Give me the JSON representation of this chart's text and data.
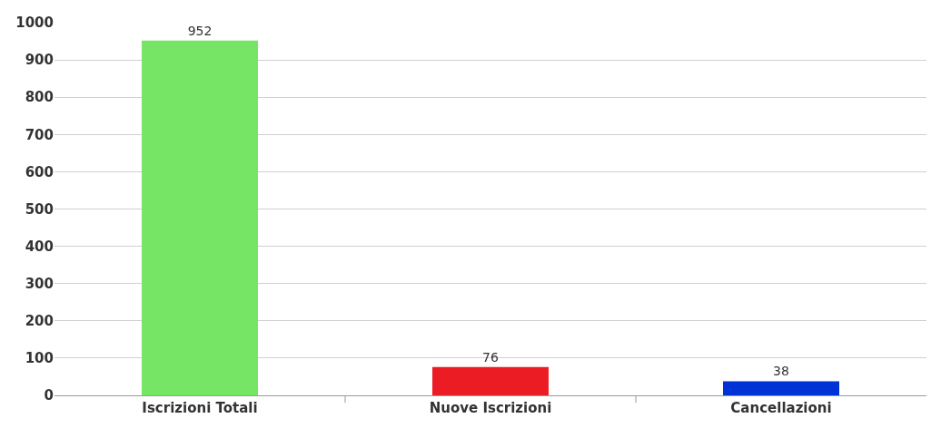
{
  "chart_data": {
    "type": "bar",
    "categories": [
      "Iscrizioni Totali",
      "Nuove Iscrizioni",
      "Cancellazioni"
    ],
    "values": [
      952,
      76,
      38
    ],
    "colors": [
      "#76e464",
      "#ec1c24",
      "#0033d6"
    ],
    "ylim": [
      0,
      1000
    ],
    "yticks": [
      0,
      100,
      200,
      300,
      400,
      500,
      600,
      700,
      800,
      900,
      1000
    ],
    "grid": "y",
    "data_labels": true
  }
}
